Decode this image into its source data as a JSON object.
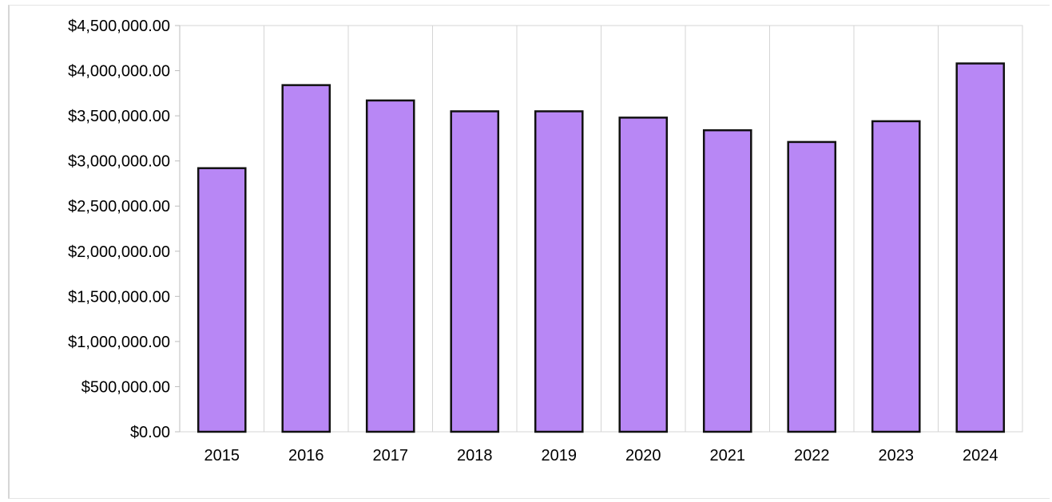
{
  "chart_data": {
    "type": "bar",
    "title": "",
    "xlabel": "",
    "ylabel": "",
    "categories": [
      "2015",
      "2016",
      "2017",
      "2018",
      "2019",
      "2020",
      "2021",
      "2022",
      "2023",
      "2024"
    ],
    "values": [
      2920000,
      3840000,
      3670000,
      3550000,
      3550000,
      3480000,
      3340000,
      3210000,
      3440000,
      4080000
    ],
    "ylim": [
      0,
      4500000
    ],
    "y_ticks": [
      "$0.00",
      "$500,000.00",
      "$1,000,000.00",
      "$1,500,000.00",
      "$2,000,000.00",
      "$2,500,000.00",
      "$3,000,000.00",
      "$3,500,000.00",
      "$4,000,000.00",
      "$4,500,000.00"
    ],
    "grid": "vertical",
    "legend": "none",
    "colors": {
      "bar_fill": "#b887f5",
      "bar_edge": "#111111",
      "grid": "#d4d4d4"
    }
  }
}
